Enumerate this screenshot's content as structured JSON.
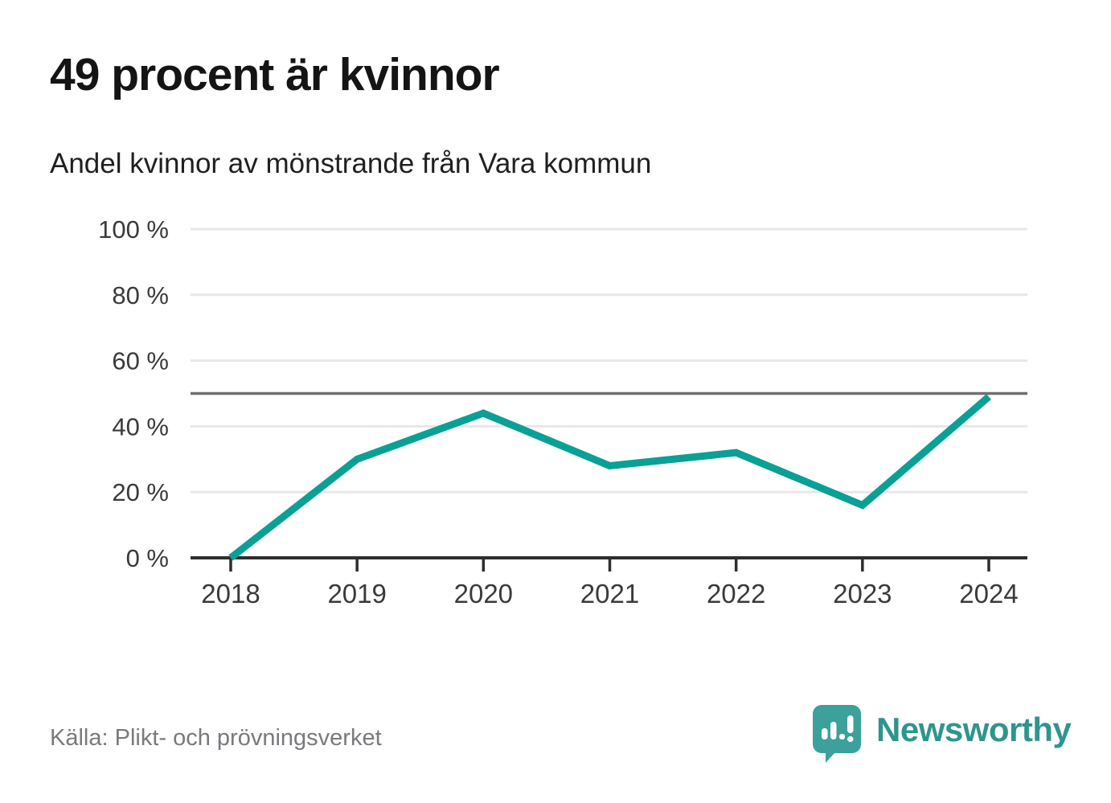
{
  "header": {
    "title": "49 procent är kvinnor",
    "subtitle": "Andel kvinnor av mönstrande från Vara kommun"
  },
  "chart_data": {
    "type": "line",
    "title": "49 procent är kvinnor",
    "subtitle": "Andel kvinnor av mönstrande från Vara kommun",
    "x": [
      2018,
      2019,
      2020,
      2021,
      2022,
      2023,
      2024
    ],
    "series": [
      {
        "name": "Andel kvinnor av mönstrande",
        "values": [
          0,
          30,
          44,
          28,
          32,
          16,
          49
        ]
      }
    ],
    "unit": "%",
    "ylim": [
      0,
      100
    ],
    "yticks": [
      0,
      20,
      40,
      60,
      80,
      100
    ],
    "ytick_suffix": " %",
    "reference_line": 50,
    "grid": true,
    "legend": "none",
    "colors": {
      "line": "#0aa096",
      "grid": "#e7e7e7",
      "axis": "#2e2e2e",
      "reference": "#6e6e73",
      "tick_label": "#3a3a3a"
    }
  },
  "footer": {
    "source": "Källa: Plikt- och prövningsverket",
    "brand": "Newsworthy",
    "brand_color": "#2e958e"
  }
}
